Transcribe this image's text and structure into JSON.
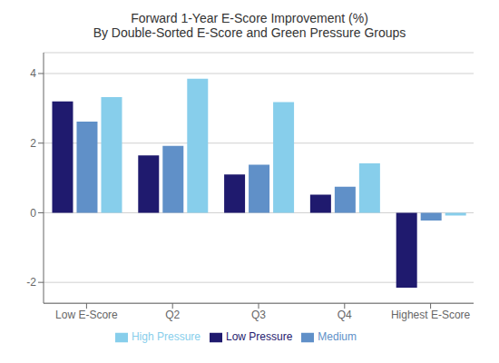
{
  "chart_data": {
    "type": "bar",
    "title": "Forward 1-Year E-Score Improvement (%)",
    "subtitle": "By Double-Sorted E-Score and Green Pressure Groups",
    "categories": [
      "Low E-Score",
      "Q2",
      "Q3",
      "Q4",
      "Highest E-Score"
    ],
    "series": [
      {
        "name": "Low Pressure",
        "color": "#1f1a6e",
        "values": [
          3.2,
          1.65,
          1.1,
          0.52,
          -2.15
        ]
      },
      {
        "name": "Medium",
        "color": "#6090c8",
        "values": [
          2.62,
          1.92,
          1.38,
          0.75,
          -0.22
        ]
      },
      {
        "name": "High Pressure",
        "color": "#87ceeb",
        "values": [
          3.32,
          3.85,
          3.18,
          1.42,
          -0.08
        ]
      }
    ],
    "ylim": [
      -2.6,
      4.6
    ],
    "yticks": [
      -2,
      0,
      2,
      4
    ],
    "grid": true,
    "legend": "bottom"
  }
}
